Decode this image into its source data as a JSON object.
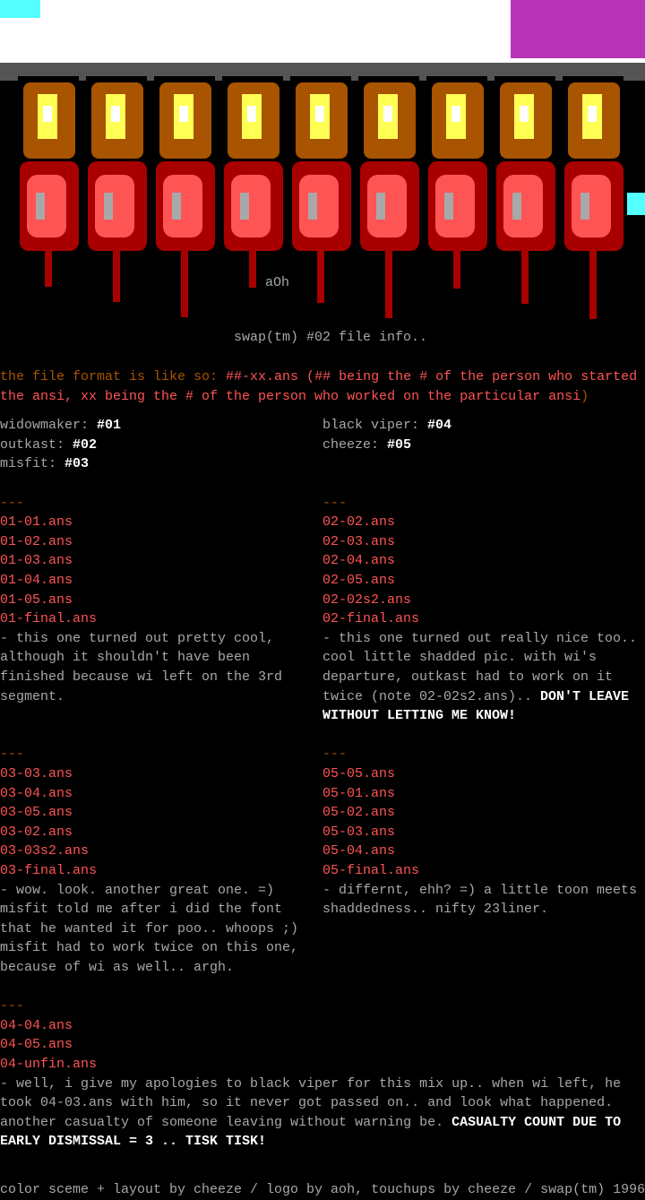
{
  "logo": {
    "signature": "aOh",
    "subtitle": "swap(tm) #02 file info..",
    "colors": {
      "orange": "#a85400",
      "yellow": "#ffff54",
      "red": "#ff5454",
      "darkred": "#a80000",
      "white": "#ffffff",
      "gray": "#a8a8a8",
      "magenta": "#a800a8",
      "cyan": "#54ffff"
    }
  },
  "intro": {
    "prefix": "the file format is like so: ",
    "line1": "##-xx.ans (## being the # of the person who started",
    "line2": "the ansi, xx being the # of the person who worked on the particular ansi",
    "close": ")"
  },
  "members": [
    {
      "name": "widowmaker: ",
      "num": "#01"
    },
    {
      "name": "black viper: ",
      "num": "#04"
    },
    {
      "name": "outkast: ",
      "num": "#02"
    },
    {
      "name": "cheeze: ",
      "num": "#05"
    },
    {
      "name": "misfit: ",
      "num": "#03"
    }
  ],
  "sep": "---",
  "sections": [
    {
      "files": [
        "01-01.ans",
        "01-02.ans",
        "01-03.ans",
        "01-04.ans",
        "01-05.ans",
        "01-final.ans"
      ],
      "desc": "- this one turned out pretty cool, although it shouldn't have been finished because wi left on the 3rd segment.",
      "emph": ""
    },
    {
      "files": [
        "02-02.ans",
        "02-03.ans",
        "02-04.ans",
        "02-05.ans",
        "02-02s2.ans",
        "02-final.ans"
      ],
      "desc": "- this one turned out really nice too.. cool little shadded pic. with wi's departure, outkast had to work on it twice (note 02-02s2.ans).. ",
      "emph": "DON'T LEAVE WITHOUT LETTING ME KNOW!"
    },
    {
      "files": [
        "03-03.ans",
        "03-04.ans",
        "03-05.ans",
        "03-02.ans",
        "03-03s2.ans",
        "03-final.ans"
      ],
      "desc": "- wow. look. another great one. =) misfit told me after i did the font that he wanted it for poo.. whoops ;) misfit had to work twice on this one, because of wi as well.. argh.",
      "emph": ""
    },
    {
      "files": [
        "05-05.ans",
        "05-01.ans",
        "05-02.ans",
        "05-03.ans",
        "05-04.ans",
        "05-final.ans"
      ],
      "desc": "- differnt, ehh? =) a little toon meets shaddedness.. nifty 23liner.",
      "emph": ""
    },
    {
      "files": [
        "04-04.ans",
        "04-05.ans",
        "04-unfin.ans"
      ],
      "desc": "- well, i give my apologies to black viper for this mix up.. when wi left, he took 04-03.ans with him, so it never got passed on.. and look what happened. another casualty of someone leaving without warning be. ",
      "emph": "CASUALTY COUNT DUE TO EARLY DISMISSAL = 3 .. TISK TISK!"
    }
  ],
  "credits": "color sceme + layout by cheeze / logo by aoh, touchups by cheeze / swap(tm) 1996"
}
